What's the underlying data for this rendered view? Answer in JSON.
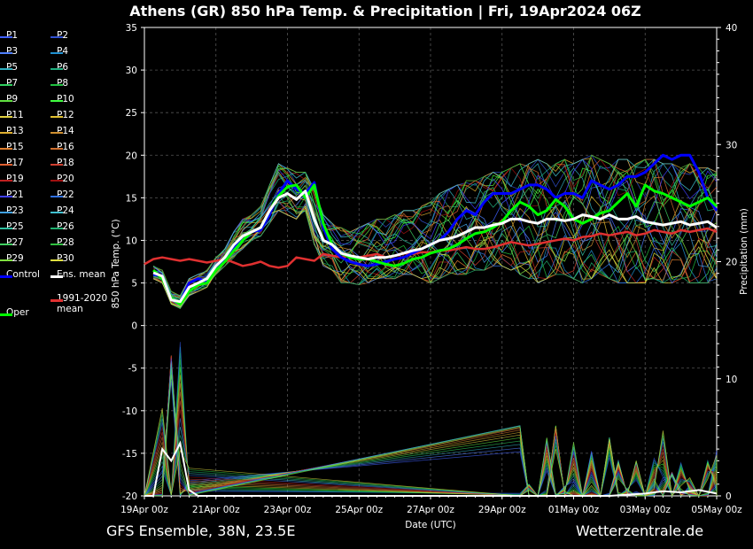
{
  "header": {
    "title": "Athens  (GR)  850 hPa Temp. & Precipitation | Fri, 19Apr2024 06Z"
  },
  "footer": {
    "model": "GFS Ensemble, 38N, 23.5E",
    "source": "Wetterzentrale.de"
  },
  "colors": {
    "background": "#000000",
    "control": "#0000ff",
    "ens_mean": "#ffffff",
    "climate_mean": "#e03030",
    "oper": "#00ff00"
  },
  "legend": {
    "members": [
      {
        "label": "P1",
        "color": "#4060ff"
      },
      {
        "label": "P2",
        "color": "#3050d0"
      },
      {
        "label": "P3",
        "color": "#5080ff"
      },
      {
        "label": "P4",
        "color": "#2090d0"
      },
      {
        "label": "P5",
        "color": "#30b0c0"
      },
      {
        "label": "P6",
        "color": "#20b080"
      },
      {
        "label": "P7",
        "color": "#30d060"
      },
      {
        "label": "P8",
        "color": "#20c040"
      },
      {
        "label": "P9",
        "color": "#60e040"
      },
      {
        "label": "P10",
        "color": "#40ff40"
      },
      {
        "label": "P11",
        "color": "#e0d040"
      },
      {
        "label": "P12",
        "color": "#e0c030"
      },
      {
        "label": "P13",
        "color": "#e0b030"
      },
      {
        "label": "P14",
        "color": "#d09030"
      },
      {
        "label": "P15",
        "color": "#e08030"
      },
      {
        "label": "P16",
        "color": "#d07030"
      },
      {
        "label": "P17",
        "color": "#e06030"
      },
      {
        "label": "P18",
        "color": "#d04030"
      },
      {
        "label": "P19",
        "color": "#c02020"
      },
      {
        "label": "P20",
        "color": "#a01010"
      },
      {
        "label": "P21",
        "color": "#4040ff"
      },
      {
        "label": "P22",
        "color": "#3070e0"
      },
      {
        "label": "P23",
        "color": "#40a0e0"
      },
      {
        "label": "P24",
        "color": "#40c0d0"
      },
      {
        "label": "P25",
        "color": "#30c0a0"
      },
      {
        "label": "P26",
        "color": "#20b070"
      },
      {
        "label": "P27",
        "color": "#40d060"
      },
      {
        "label": "P28",
        "color": "#30c040"
      },
      {
        "label": "P29",
        "color": "#80e040"
      },
      {
        "label": "P30",
        "color": "#e0e040"
      }
    ],
    "control_label": "Control",
    "ens_mean_label": "Ens. mean",
    "climate_label_1": "1991-2020",
    "climate_label_2": "mean",
    "oper_label": "Oper"
  },
  "chart_data": {
    "type": "line",
    "title": "Athens  (GR)  850 hPa Temp. & Precipitation | Fri, 19Apr2024 06Z",
    "xlabel": "Date (UTC)",
    "ylabel": "850 hPa Temp. (°C)",
    "y2label": "Precipitation (mm)",
    "ylim": [
      -20,
      35
    ],
    "y2lim": [
      0,
      40
    ],
    "yticks": [
      "35",
      "30",
      "25",
      "20",
      "15",
      "10",
      "5",
      "0",
      "-5",
      "-10",
      "-15",
      "-20"
    ],
    "y2ticks": [
      "40",
      "30",
      "20",
      "10",
      "0"
    ],
    "xlim_hours": [
      0,
      384
    ],
    "xticks": [
      "19Apr 00z",
      "21Apr 00z",
      "23Apr 00z",
      "25Apr 00z",
      "27Apr 00z",
      "29Apr 00z",
      "01May 00z",
      "03May 00z",
      "05May 00z"
    ],
    "grid": true,
    "oper": {
      "x": [
        6,
        12,
        18,
        24,
        30,
        36,
        42,
        48,
        54,
        60,
        66,
        72,
        78,
        84,
        90,
        96,
        102,
        108,
        114,
        120,
        126,
        132,
        138,
        144,
        150,
        156,
        162,
        168,
        174,
        180,
        186,
        192,
        198,
        204,
        210,
        216,
        222,
        228,
        234,
        240,
        246,
        252,
        258,
        264,
        270,
        276,
        282,
        288,
        294,
        300,
        306,
        312,
        318,
        324,
        330,
        336,
        342,
        348,
        354,
        360,
        366,
        372,
        378,
        384
      ],
      "y": [
        6.5,
        5.5,
        3.2,
        2.5,
        4.0,
        4.8,
        5.0,
        6.5,
        7.5,
        8.8,
        10.0,
        11.0,
        11.5,
        13.5,
        15.2,
        16.3,
        16.5,
        15.0,
        16.5,
        12.0,
        9.5,
        8.5,
        8.0,
        7.8,
        7.8,
        7.5,
        7.2,
        7.0,
        7.3,
        7.8,
        8.0,
        8.5,
        8.8,
        9.0,
        9.5,
        10.2,
        10.8,
        11.0,
        11.5,
        12.2,
        13.5,
        14.5,
        14.0,
        13.0,
        13.5,
        14.8,
        14.0,
        12.5,
        12.0,
        12.5,
        13.2,
        13.5,
        14.5,
        15.5,
        14.0,
        16.5,
        15.8,
        15.5,
        15.0,
        14.5,
        14.0,
        14.5,
        15.0,
        14.0
      ]
    },
    "control": {
      "x": [
        6,
        12,
        18,
        24,
        30,
        36,
        42,
        48,
        54,
        60,
        66,
        72,
        78,
        84,
        90,
        96,
        102,
        108,
        114,
        120,
        126,
        132,
        138,
        144,
        150,
        156,
        162,
        168,
        174,
        180,
        186,
        192,
        198,
        204,
        210,
        216,
        222,
        228,
        234,
        240,
        246,
        252,
        258,
        264,
        270,
        276,
        282,
        288,
        294,
        300,
        306,
        312,
        318,
        324,
        330,
        336,
        342,
        348,
        354,
        360,
        366,
        372,
        378,
        384
      ],
      "y": [
        6.0,
        5.8,
        3.0,
        2.8,
        5.0,
        5.5,
        5.2,
        6.8,
        7.8,
        9.2,
        10.5,
        11.0,
        11.2,
        13.0,
        15.5,
        17.0,
        16.0,
        15.5,
        16.8,
        11.5,
        9.0,
        8.0,
        7.5,
        7.2,
        7.0,
        7.2,
        7.5,
        7.8,
        8.0,
        8.5,
        9.0,
        9.5,
        10.0,
        11.0,
        12.5,
        13.5,
        13.0,
        14.5,
        15.5,
        15.5,
        15.5,
        16.0,
        16.5,
        16.5,
        16.0,
        15.0,
        15.5,
        15.5,
        15.0,
        17.0,
        16.5,
        16.0,
        16.5,
        17.5,
        17.5,
        18.0,
        19.0,
        20.0,
        19.5,
        20.0,
        20.0,
        18.0,
        15.0,
        13.5
      ]
    },
    "ens_mean": {
      "x": [
        6,
        12,
        18,
        24,
        30,
        36,
        42,
        48,
        54,
        60,
        66,
        72,
        78,
        84,
        90,
        96,
        102,
        108,
        114,
        120,
        126,
        132,
        138,
        144,
        150,
        156,
        162,
        168,
        174,
        180,
        186,
        192,
        198,
        204,
        210,
        216,
        222,
        228,
        234,
        240,
        246,
        252,
        258,
        264,
        270,
        276,
        282,
        288,
        294,
        300,
        306,
        312,
        318,
        324,
        330,
        336,
        342,
        348,
        354,
        360,
        366,
        372,
        378,
        384
      ],
      "y": [
        6.2,
        5.8,
        3.0,
        2.8,
        4.5,
        5.0,
        5.5,
        7.0,
        8.0,
        9.5,
        10.5,
        11.0,
        11.5,
        13.5,
        15.0,
        15.5,
        14.8,
        15.8,
        12.5,
        10.0,
        9.5,
        8.5,
        8.2,
        8.0,
        7.8,
        8.0,
        8.0,
        8.2,
        8.5,
        8.8,
        9.0,
        9.5,
        10.0,
        10.2,
        10.5,
        11.0,
        11.5,
        11.5,
        11.8,
        12.0,
        12.5,
        12.5,
        12.2,
        12.0,
        12.5,
        12.5,
        12.3,
        12.5,
        13.0,
        12.8,
        12.5,
        13.0,
        12.5,
        12.5,
        12.8,
        12.2,
        12.0,
        11.8,
        12.0,
        12.2,
        11.8,
        12.0,
        12.2,
        11.5
      ]
    },
    "climate_mean": {
      "x": [
        0,
        6,
        12,
        18,
        24,
        30,
        36,
        42,
        48,
        54,
        60,
        66,
        72,
        78,
        84,
        90,
        96,
        102,
        108,
        114,
        120,
        126,
        132,
        138,
        144,
        150,
        156,
        162,
        168,
        174,
        180,
        186,
        192,
        198,
        204,
        210,
        216,
        222,
        228,
        234,
        240,
        246,
        252,
        258,
        264,
        270,
        276,
        282,
        288,
        294,
        300,
        306,
        312,
        318,
        324,
        330,
        336,
        342,
        348,
        354,
        360,
        366,
        372,
        378,
        384
      ],
      "y": [
        7.2,
        7.8,
        8.0,
        7.8,
        7.6,
        7.8,
        7.6,
        7.4,
        7.6,
        7.8,
        7.4,
        7.0,
        7.2,
        7.5,
        7.0,
        6.8,
        7.0,
        8.0,
        7.8,
        7.6,
        8.4,
        8.2,
        8.0,
        8.2,
        8.0,
        8.2,
        8.4,
        8.0,
        8.2,
        8.5,
        8.4,
        8.6,
        8.6,
        8.8,
        8.8,
        9.0,
        9.2,
        9.0,
        9.0,
        9.2,
        9.5,
        9.8,
        9.6,
        9.4,
        9.6,
        9.8,
        10.0,
        10.2,
        10.0,
        10.4,
        10.5,
        10.8,
        10.6,
        10.8,
        11.0,
        10.6,
        10.8,
        11.2,
        11.0,
        10.8,
        11.2,
        11.0,
        11.2,
        11.4,
        11.0
      ]
    },
    "members_spread": {
      "x": [
        6,
        12,
        18,
        24,
        30,
        36,
        42,
        48,
        54,
        60,
        66,
        72,
        78,
        84,
        90,
        96,
        102,
        108,
        114,
        120,
        126,
        132,
        138,
        144,
        150,
        156,
        162,
        168,
        174,
        180,
        186,
        192,
        198,
        204,
        210,
        216,
        222,
        228,
        234,
        240,
        246,
        252,
        258,
        264,
        270,
        276,
        282,
        288,
        294,
        300,
        306,
        312,
        318,
        324,
        330,
        336,
        342,
        348,
        354,
        360,
        366,
        372,
        378,
        384
      ],
      "low": [
        5.5,
        5.0,
        2.5,
        2.0,
        3.5,
        4.0,
        4.5,
        6.0,
        7.0,
        8.0,
        9.0,
        10.0,
        10.5,
        12.0,
        13.5,
        13.0,
        12.5,
        13.5,
        9.5,
        7.0,
        6.5,
        5.0,
        5.0,
        4.8,
        5.0,
        5.5,
        5.5,
        5.5,
        6.0,
        6.0,
        5.5,
        5.0,
        5.5,
        6.0,
        6.0,
        6.0,
        6.5,
        6.5,
        7.0,
        7.0,
        6.5,
        6.0,
        5.5,
        5.0,
        5.5,
        6.0,
        6.0,
        5.5,
        5.0,
        5.5,
        6.0,
        5.5,
        5.0,
        5.0,
        5.0,
        5.0,
        5.5,
        5.0,
        5.0,
        5.5,
        5.0,
        5.0,
        5.0,
        5.5
      ],
      "high": [
        7.0,
        6.5,
        4.0,
        3.5,
        5.5,
        6.0,
        6.5,
        8.0,
        9.0,
        11.0,
        12.5,
        13.0,
        14.0,
        16.5,
        19.0,
        18.5,
        18.0,
        18.0,
        16.0,
        13.0,
        12.0,
        11.5,
        11.0,
        11.5,
        12.0,
        12.5,
        12.5,
        13.0,
        13.5,
        13.5,
        14.0,
        14.5,
        15.5,
        16.0,
        16.5,
        17.0,
        17.0,
        17.5,
        18.0,
        18.0,
        18.5,
        19.0,
        19.0,
        19.5,
        19.0,
        19.0,
        19.5,
        19.0,
        19.5,
        20.0,
        19.5,
        19.0,
        19.5,
        19.5,
        19.0,
        19.5,
        19.5,
        19.0,
        19.0,
        18.5,
        19.0,
        18.5,
        18.5,
        18.0
      ]
    },
    "precip_ens_mean": {
      "x": [
        0,
        6,
        12,
        18,
        24,
        30,
        36,
        42,
        48,
        72,
        96,
        120,
        144,
        168,
        192,
        216,
        240,
        264,
        288,
        312,
        336,
        348,
        360,
        372,
        384
      ],
      "y": [
        0,
        0,
        4.0,
        3.0,
        4.5,
        0.5,
        0,
        0,
        0,
        0,
        0,
        0,
        0,
        0,
        0,
        0,
        0,
        0,
        0,
        0,
        0.2,
        0.4,
        0.3,
        0.5,
        0.2
      ]
    },
    "precip_members_peak": {
      "x": [
        12,
        18,
        24,
        30,
        252,
        258,
        264,
        270,
        276,
        282,
        288,
        294,
        300,
        306,
        312,
        318,
        324,
        330,
        336,
        342,
        348,
        354,
        360,
        366,
        372,
        378,
        384
      ],
      "y": [
        8,
        12,
        14,
        3,
        6,
        1,
        0,
        5,
        6,
        1,
        5,
        0,
        4,
        0,
        5,
        3,
        1,
        3,
        0,
        4,
        6,
        2,
        3,
        2,
        0,
        3,
        6
      ]
    }
  }
}
